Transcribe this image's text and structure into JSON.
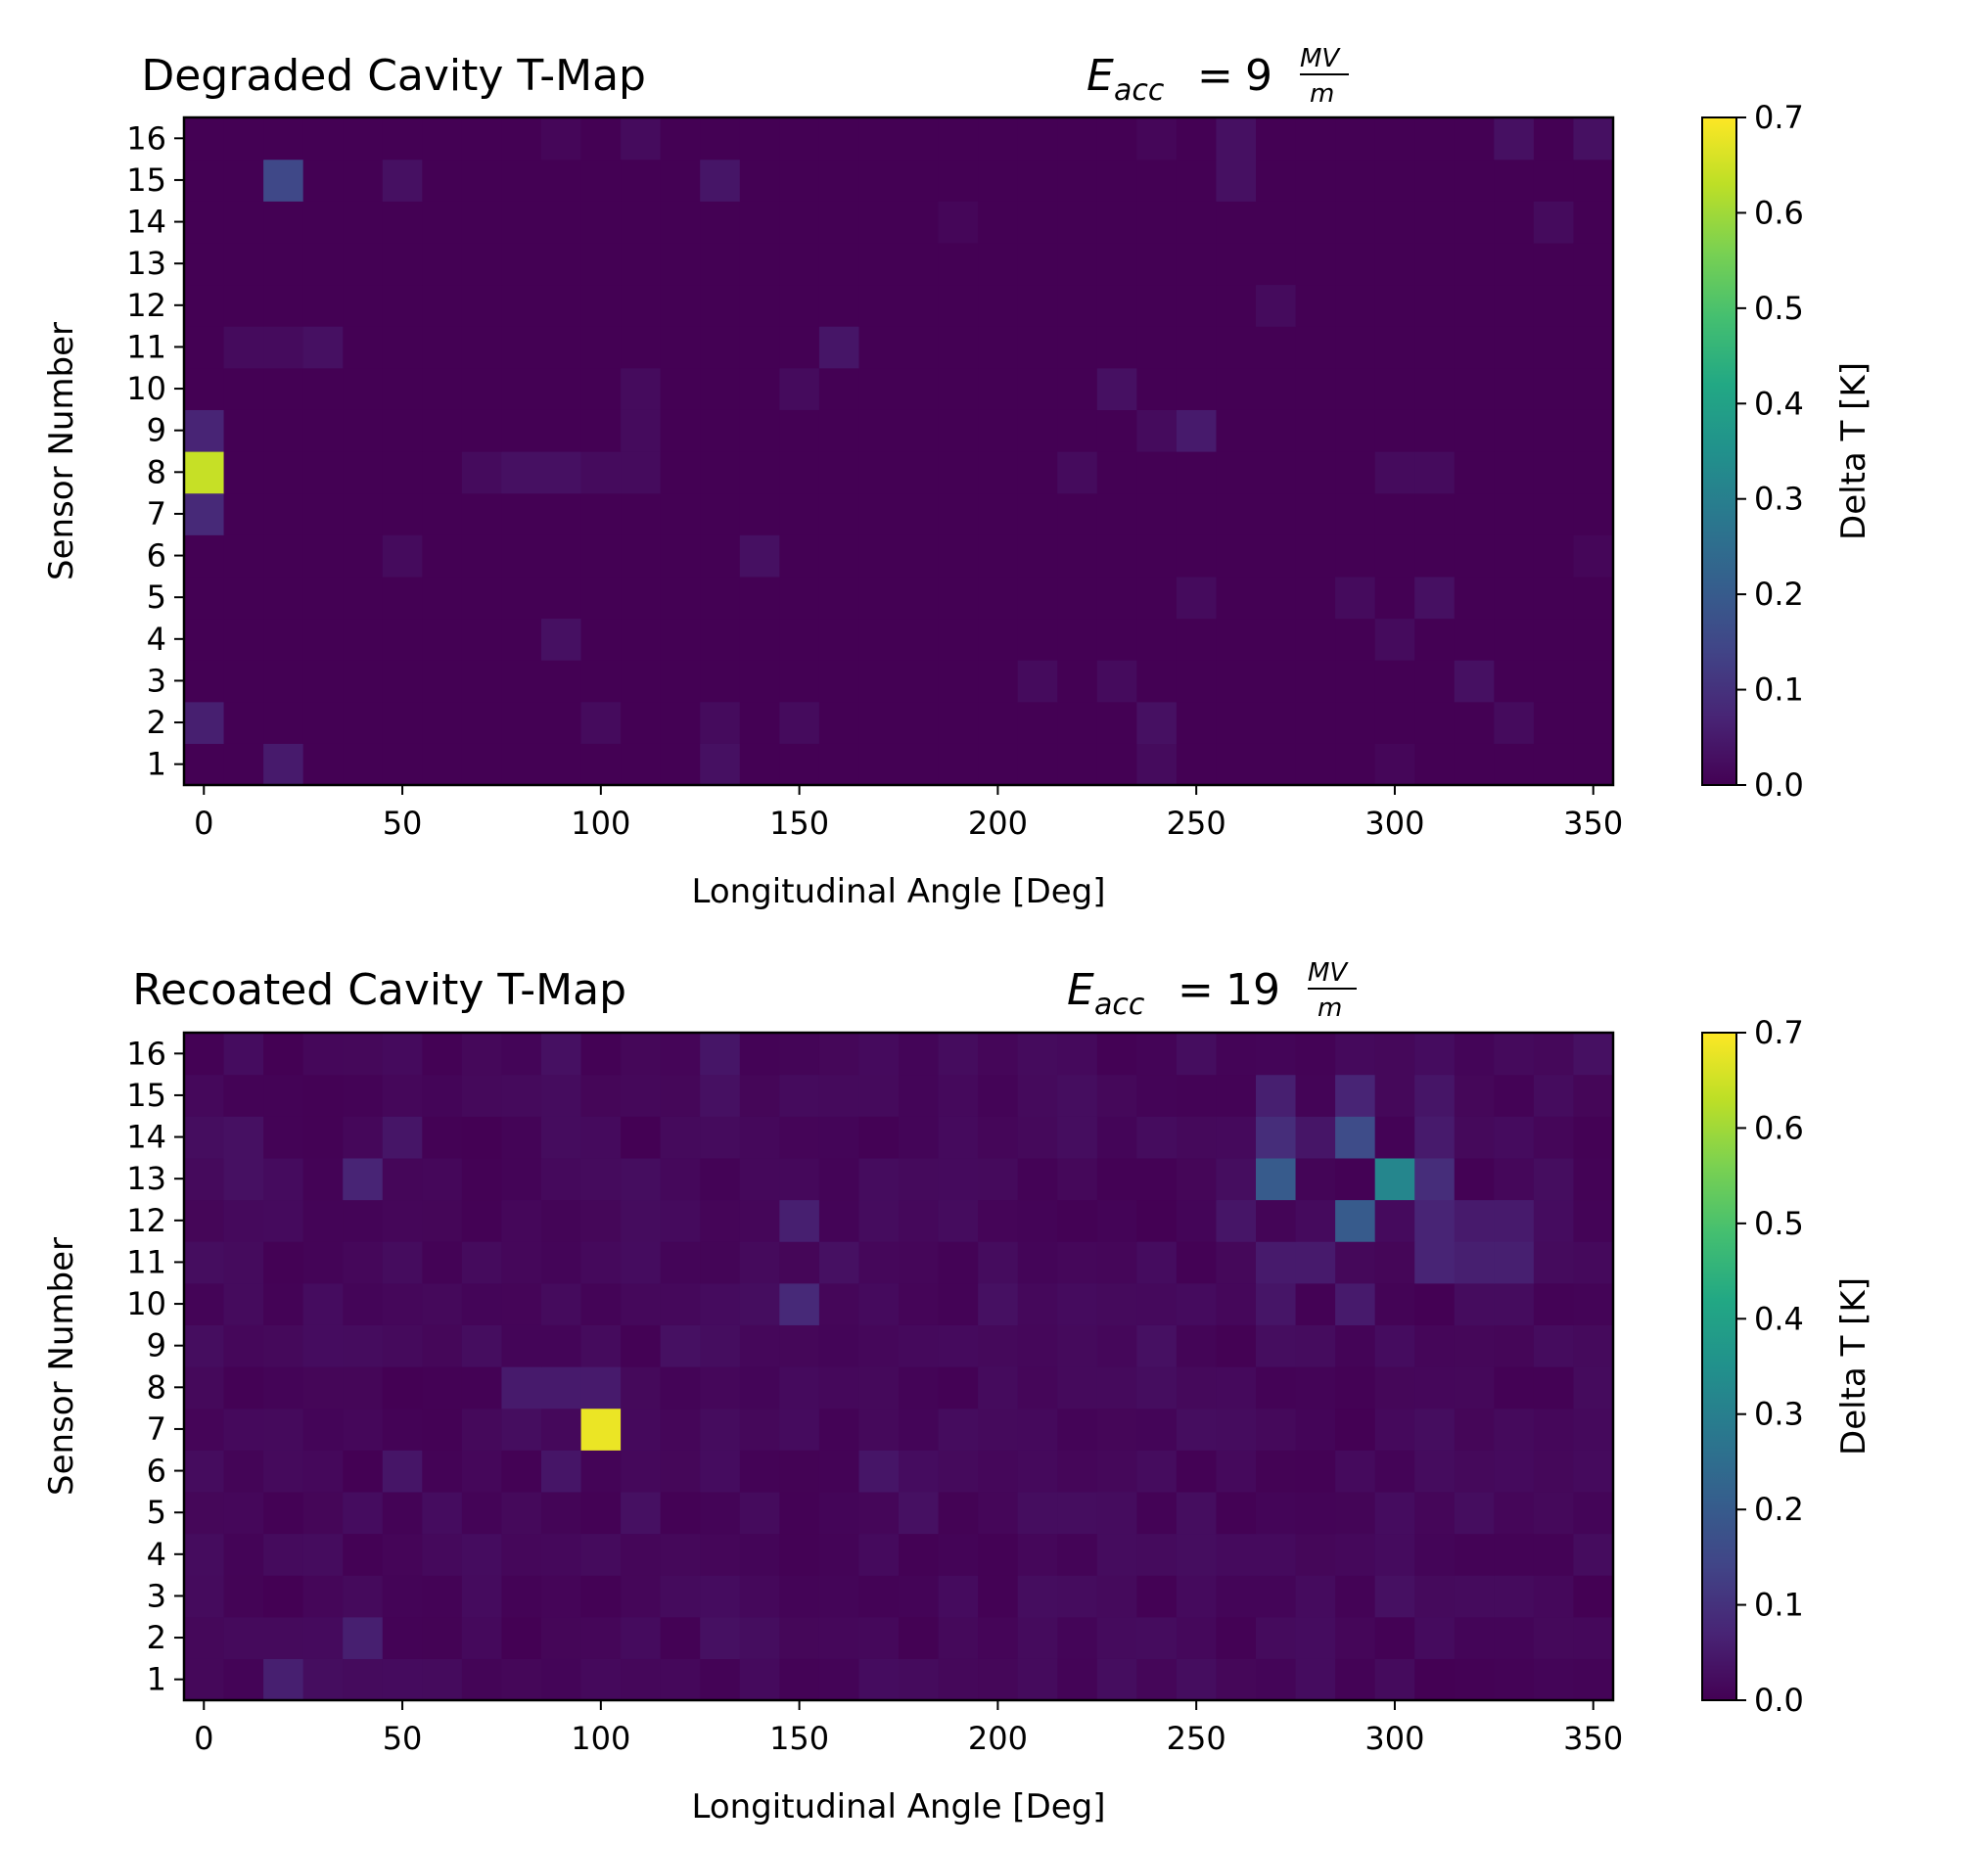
{
  "chart_data": [
    {
      "type": "heatmap",
      "title": "Degraded Cavity T-Map",
      "field_label": {
        "symbol": "E",
        "subscript": "acc",
        "equals": "=",
        "value": "9",
        "unit_num": "MV",
        "unit_den": "m"
      },
      "xlabel": "Longitudinal Angle [Deg]",
      "ylabel": "Sensor Number",
      "colorbar_label": "Delta T [K]",
      "colormap": "viridis",
      "vmin": 0.0,
      "vmax": 0.7,
      "x_ticks": [
        "0",
        "50",
        "100",
        "150",
        "200",
        "250",
        "300",
        "350"
      ],
      "y_ticks": [
        "1",
        "2",
        "3",
        "4",
        "5",
        "6",
        "7",
        "8",
        "9",
        "10",
        "11",
        "12",
        "13",
        "14",
        "15",
        "16"
      ],
      "colorbar_ticks": [
        "0.0",
        "0.1",
        "0.2",
        "0.3",
        "0.4",
        "0.5",
        "0.6",
        "0.7"
      ],
      "x_angles_deg": [
        0,
        10,
        20,
        30,
        40,
        50,
        60,
        70,
        80,
        90,
        100,
        110,
        120,
        130,
        140,
        150,
        160,
        170,
        180,
        190,
        200,
        210,
        220,
        230,
        240,
        250,
        260,
        270,
        280,
        290,
        300,
        310,
        320,
        330,
        340,
        350
      ],
      "hotspots": [
        {
          "sensor": 8,
          "angle": 0,
          "value": 0.64
        },
        {
          "sensor": 9,
          "angle": 0,
          "value": 0.07
        },
        {
          "sensor": 7,
          "angle": 0,
          "value": 0.08
        },
        {
          "sensor": 2,
          "angle": 0,
          "value": 0.06
        },
        {
          "sensor": 15,
          "angle": 20,
          "value": 0.15
        },
        {
          "sensor": 1,
          "angle": 20,
          "value": 0.05
        },
        {
          "sensor": 11,
          "angle": 10,
          "value": 0.02
        },
        {
          "sensor": 11,
          "angle": 20,
          "value": 0.02
        },
        {
          "sensor": 11,
          "angle": 30,
          "value": 0.03
        },
        {
          "sensor": 15,
          "angle": 50,
          "value": 0.03
        },
        {
          "sensor": 6,
          "angle": 50,
          "value": 0.02
        },
        {
          "sensor": 8,
          "angle": 70,
          "value": 0.02
        },
        {
          "sensor": 8,
          "angle": 80,
          "value": 0.03
        },
        {
          "sensor": 8,
          "angle": 90,
          "value": 0.03
        },
        {
          "sensor": 8,
          "angle": 100,
          "value": 0.02
        },
        {
          "sensor": 8,
          "angle": 110,
          "value": 0.02
        },
        {
          "sensor": 4,
          "angle": 90,
          "value": 0.03
        },
        {
          "sensor": 16,
          "angle": 90,
          "value": 0.01
        },
        {
          "sensor": 16,
          "angle": 110,
          "value": 0.02
        },
        {
          "sensor": 10,
          "angle": 110,
          "value": 0.02
        },
        {
          "sensor": 9,
          "angle": 110,
          "value": 0.02
        },
        {
          "sensor": 2,
          "angle": 100,
          "value": 0.02
        },
        {
          "sensor": 15,
          "angle": 130,
          "value": 0.04
        },
        {
          "sensor": 1,
          "angle": 130,
          "value": 0.03
        },
        {
          "sensor": 2,
          "angle": 130,
          "value": 0.02
        },
        {
          "sensor": 2,
          "angle": 150,
          "value": 0.02
        },
        {
          "sensor": 6,
          "angle": 140,
          "value": 0.03
        },
        {
          "sensor": 11,
          "angle": 160,
          "value": 0.04
        },
        {
          "sensor": 10,
          "angle": 150,
          "value": 0.02
        },
        {
          "sensor": 14,
          "angle": 190,
          "value": 0.01
        },
        {
          "sensor": 3,
          "angle": 210,
          "value": 0.02
        },
        {
          "sensor": 8,
          "angle": 220,
          "value": 0.02
        },
        {
          "sensor": 10,
          "angle": 230,
          "value": 0.03
        },
        {
          "sensor": 3,
          "angle": 230,
          "value": 0.02
        },
        {
          "sensor": 2,
          "angle": 240,
          "value": 0.03
        },
        {
          "sensor": 1,
          "angle": 240,
          "value": 0.02
        },
        {
          "sensor": 9,
          "angle": 240,
          "value": 0.02
        },
        {
          "sensor": 9,
          "angle": 250,
          "value": 0.05
        },
        {
          "sensor": 16,
          "angle": 240,
          "value": 0.01
        },
        {
          "sensor": 16,
          "angle": 260,
          "value": 0.03
        },
        {
          "sensor": 15,
          "angle": 260,
          "value": 0.03
        },
        {
          "sensor": 5,
          "angle": 250,
          "value": 0.02
        },
        {
          "sensor": 12,
          "angle": 270,
          "value": 0.02
        },
        {
          "sensor": 5,
          "angle": 290,
          "value": 0.02
        },
        {
          "sensor": 5,
          "angle": 310,
          "value": 0.03
        },
        {
          "sensor": 4,
          "angle": 300,
          "value": 0.02
        },
        {
          "sensor": 8,
          "angle": 300,
          "value": 0.02
        },
        {
          "sensor": 8,
          "angle": 310,
          "value": 0.02
        },
        {
          "sensor": 1,
          "angle": 300,
          "value": 0.01
        },
        {
          "sensor": 3,
          "angle": 320,
          "value": 0.03
        },
        {
          "sensor": 2,
          "angle": 330,
          "value": 0.02
        },
        {
          "sensor": 16,
          "angle": 330,
          "value": 0.03
        },
        {
          "sensor": 16,
          "angle": 350,
          "value": 0.03
        },
        {
          "sensor": 14,
          "angle": 340,
          "value": 0.02
        },
        {
          "sensor": 6,
          "angle": 350,
          "value": 0.01
        }
      ]
    },
    {
      "type": "heatmap",
      "title": "Recoated Cavity T-Map",
      "field_label": {
        "symbol": "E",
        "subscript": "acc",
        "equals": "=",
        "value": "19",
        "unit_num": "MV",
        "unit_den": "m"
      },
      "xlabel": "Longitudinal Angle [Deg]",
      "ylabel": "Sensor Number",
      "colorbar_label": "Delta T [K]",
      "colormap": "viridis",
      "vmin": 0.0,
      "vmax": 0.7,
      "x_ticks": [
        "0",
        "50",
        "100",
        "150",
        "200",
        "250",
        "300",
        "350"
      ],
      "y_ticks": [
        "1",
        "2",
        "3",
        "4",
        "5",
        "6",
        "7",
        "8",
        "9",
        "10",
        "11",
        "12",
        "13",
        "14",
        "15",
        "16"
      ],
      "colorbar_ticks": [
        "0.0",
        "0.1",
        "0.2",
        "0.3",
        "0.4",
        "0.5",
        "0.6",
        "0.7"
      ],
      "x_angles_deg": [
        0,
        10,
        20,
        30,
        40,
        50,
        60,
        70,
        80,
        90,
        100,
        110,
        120,
        130,
        140,
        150,
        160,
        170,
        180,
        190,
        200,
        210,
        220,
        230,
        240,
        250,
        260,
        270,
        280,
        290,
        300,
        310,
        320,
        330,
        340,
        350
      ],
      "background_level": 0.015,
      "hotspots": [
        {
          "sensor": 7,
          "angle": 100,
          "value": 0.68
        },
        {
          "sensor": 13,
          "angle": 300,
          "value": 0.32
        },
        {
          "sensor": 13,
          "angle": 270,
          "value": 0.2
        },
        {
          "sensor": 12,
          "angle": 290,
          "value": 0.2
        },
        {
          "sensor": 14,
          "angle": 290,
          "value": 0.16
        },
        {
          "sensor": 14,
          "angle": 270,
          "value": 0.09
        },
        {
          "sensor": 15,
          "angle": 270,
          "value": 0.06
        },
        {
          "sensor": 15,
          "angle": 290,
          "value": 0.07
        },
        {
          "sensor": 13,
          "angle": 310,
          "value": 0.09
        },
        {
          "sensor": 12,
          "angle": 310,
          "value": 0.07
        },
        {
          "sensor": 11,
          "angle": 310,
          "value": 0.07
        },
        {
          "sensor": 11,
          "angle": 320,
          "value": 0.06
        },
        {
          "sensor": 11,
          "angle": 330,
          "value": 0.06
        },
        {
          "sensor": 12,
          "angle": 320,
          "value": 0.05
        },
        {
          "sensor": 12,
          "angle": 330,
          "value": 0.05
        },
        {
          "sensor": 14,
          "angle": 310,
          "value": 0.05
        },
        {
          "sensor": 15,
          "angle": 310,
          "value": 0.04
        },
        {
          "sensor": 14,
          "angle": 280,
          "value": 0.04
        },
        {
          "sensor": 11,
          "angle": 270,
          "value": 0.05
        },
        {
          "sensor": 11,
          "angle": 280,
          "value": 0.05
        },
        {
          "sensor": 10,
          "angle": 290,
          "value": 0.05
        },
        {
          "sensor": 10,
          "angle": 270,
          "value": 0.04
        },
        {
          "sensor": 12,
          "angle": 260,
          "value": 0.04
        },
        {
          "sensor": 10,
          "angle": 150,
          "value": 0.08
        },
        {
          "sensor": 12,
          "angle": 150,
          "value": 0.06
        },
        {
          "sensor": 13,
          "angle": 40,
          "value": 0.07
        },
        {
          "sensor": 2,
          "angle": 40,
          "value": 0.06
        },
        {
          "sensor": 1,
          "angle": 20,
          "value": 0.06
        },
        {
          "sensor": 16,
          "angle": 130,
          "value": 0.04
        },
        {
          "sensor": 15,
          "angle": 130,
          "value": 0.03
        },
        {
          "sensor": 16,
          "angle": 90,
          "value": 0.03
        },
        {
          "sensor": 8,
          "angle": 80,
          "value": 0.05
        },
        {
          "sensor": 8,
          "angle": 90,
          "value": 0.05
        },
        {
          "sensor": 8,
          "angle": 100,
          "value": 0.05
        },
        {
          "sensor": 6,
          "angle": 90,
          "value": 0.04
        },
        {
          "sensor": 6,
          "angle": 170,
          "value": 0.04
        },
        {
          "sensor": 6,
          "angle": 50,
          "value": 0.04
        },
        {
          "sensor": 14,
          "angle": 50,
          "value": 0.04
        },
        {
          "sensor": 14,
          "angle": 10,
          "value": 0.03
        },
        {
          "sensor": 13,
          "angle": 10,
          "value": 0.03
        },
        {
          "sensor": 11,
          "angle": 160,
          "value": 0.03
        },
        {
          "sensor": 16,
          "angle": 350,
          "value": 0.03
        },
        {
          "sensor": 3,
          "angle": 300,
          "value": 0.03
        },
        {
          "sensor": 1,
          "angle": 300,
          "value": 0.02
        },
        {
          "sensor": 2,
          "angle": 130,
          "value": 0.03
        },
        {
          "sensor": 2,
          "angle": 210,
          "value": 0.02
        },
        {
          "sensor": 2,
          "angle": 230,
          "value": 0.02
        },
        {
          "sensor": 9,
          "angle": 120,
          "value": 0.03
        },
        {
          "sensor": 5,
          "angle": 110,
          "value": 0.03
        },
        {
          "sensor": 5,
          "angle": 180,
          "value": 0.03
        },
        {
          "sensor": 10,
          "angle": 200,
          "value": 0.03
        },
        {
          "sensor": 9,
          "angle": 240,
          "value": 0.03
        }
      ]
    }
  ]
}
